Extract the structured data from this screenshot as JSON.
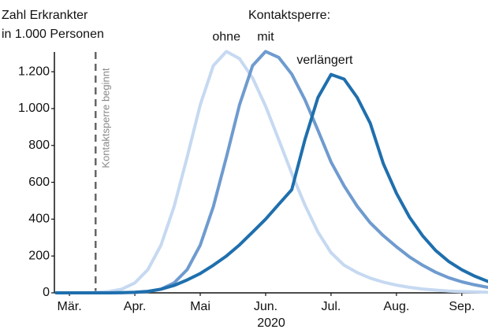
{
  "chart_data": {
    "type": "line",
    "y_label": [
      "Zahl Erkrankter",
      "in 1.000 Personen"
    ],
    "x_label": "2020",
    "legend_title": "Kontaktsperre:",
    "annotations": [
      {
        "text": "Kontaktsperre beginnt",
        "x": 3.4
      }
    ],
    "x": [
      2.8,
      3.0,
      3.2,
      3.4,
      3.6,
      3.8,
      4.0,
      4.2,
      4.4,
      4.6,
      4.8,
      5.0,
      5.2,
      5.4,
      5.6,
      5.8,
      6.0,
      6.2,
      6.4,
      6.6,
      6.8,
      7.0,
      7.2,
      7.4,
      7.6,
      7.8,
      8.0,
      8.2,
      8.4,
      8.6,
      8.8,
      9.0,
      9.2,
      9.4
    ],
    "series": [
      {
        "name": "ohne",
        "color": "#c6d9f1",
        "values": [
          0,
          0,
          1,
          2,
          7,
          20,
          54,
          126,
          259,
          468,
          737,
          1020,
          1233,
          1310,
          1271,
          1166,
          1013,
          832,
          648,
          477,
          330,
          218,
          150,
          110,
          80,
          58,
          42,
          30,
          21,
          15,
          10,
          7,
          5,
          3
        ]
      },
      {
        "name": "mit",
        "color": "#6f9bcf",
        "values": [
          0,
          0,
          0,
          0,
          0,
          1,
          2,
          7,
          20,
          54,
          126,
          259,
          468,
          737,
          1020,
          1233,
          1310,
          1278,
          1187,
          1049,
          882,
          710,
          580,
          470,
          380,
          310,
          250,
          195,
          150,
          112,
          82,
          60,
          43,
          30
        ]
      },
      {
        "name": "verlängert",
        "color": "#1f6fad",
        "values": [
          0,
          0,
          0,
          0,
          0,
          1,
          3,
          8,
          20,
          40,
          70,
          105,
          150,
          200,
          260,
          330,
          400,
          480,
          560,
          830,
          1060,
          1185,
          1160,
          1060,
          920,
          700,
          540,
          410,
          310,
          230,
          170,
          125,
          90,
          62
        ]
      }
    ],
    "xlim": [
      2.77,
      9.4
    ],
    "xticks": [
      {
        "value": 3,
        "label": "Mär."
      },
      {
        "value": 4,
        "label": "Apr."
      },
      {
        "value": 5,
        "label": "Mai"
      },
      {
        "value": 6,
        "label": "Jun."
      },
      {
        "value": 7,
        "label": "Jul."
      },
      {
        "value": 8,
        "label": "Aug."
      },
      {
        "value": 9,
        "label": "Sep."
      }
    ],
    "ylim": [
      0,
      1350
    ],
    "yticks": [
      0,
      200,
      400,
      600,
      800,
      {
        "value": 1000,
        "label": "1.000"
      },
      {
        "value": 1200,
        "label": "1.200"
      }
    ],
    "grid": false
  }
}
